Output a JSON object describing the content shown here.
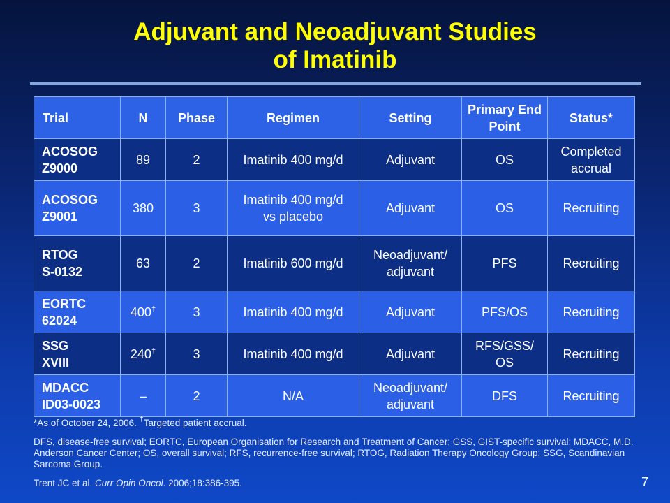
{
  "title": {
    "line1": "Adjuvant and Neoadjuvant Studies",
    "line2": "of Imatinib"
  },
  "table": {
    "headers": [
      "Trial",
      "N",
      "Phase",
      "Regimen",
      "Setting",
      "Primary End Point",
      "Status*"
    ],
    "rows": [
      {
        "trial_line1": "ACOSOG",
        "trial_line2": "Z9000",
        "n": "89",
        "n_mark": "",
        "phase": "2",
        "regimen_line1": "Imatinib 400 mg/d",
        "regimen_line2": "",
        "setting_line1": "Adjuvant",
        "setting_line2": "",
        "endpoint_line1": "OS",
        "endpoint_line2": "",
        "status_line1": "Completed",
        "status_line2": "accrual"
      },
      {
        "trial_line1": "ACOSOG",
        "trial_line2": "Z9001",
        "n": "380",
        "n_mark": "",
        "phase": "3",
        "regimen_line1": "Imatinib 400 mg/d",
        "regimen_line2": "vs placebo",
        "setting_line1": "Adjuvant",
        "setting_line2": "",
        "endpoint_line1": "OS",
        "endpoint_line2": "",
        "status_line1": "Recruiting",
        "status_line2": ""
      },
      {
        "trial_line1": "RTOG",
        "trial_line2": "S-0132",
        "n": "63",
        "n_mark": "",
        "phase": "2",
        "regimen_line1": "Imatinib 600 mg/d",
        "regimen_line2": "",
        "setting_line1": "Neoadjuvant/",
        "setting_line2": "adjuvant",
        "endpoint_line1": "PFS",
        "endpoint_line2": "",
        "status_line1": "Recruiting",
        "status_line2": ""
      },
      {
        "trial_line1": "EORTC",
        "trial_line2": "62024",
        "n": "400",
        "n_mark": "†",
        "phase": "3",
        "regimen_line1": "Imatinib 400 mg/d",
        "regimen_line2": "",
        "setting_line1": "Adjuvant",
        "setting_line2": "",
        "endpoint_line1": "PFS/OS",
        "endpoint_line2": "",
        "status_line1": "Recruiting",
        "status_line2": ""
      },
      {
        "trial_line1": "SSG",
        "trial_line2": "XVIII",
        "n": "240",
        "n_mark": "†",
        "phase": "3",
        "regimen_line1": "Imatinib 400 mg/d",
        "regimen_line2": "",
        "setting_line1": "Adjuvant",
        "setting_line2": "",
        "endpoint_line1": "RFS/GSS/",
        "endpoint_line2": "OS",
        "status_line1": "Recruiting",
        "status_line2": ""
      },
      {
        "trial_line1": "MDACC",
        "trial_line2": "ID03-0023",
        "n": "–",
        "n_mark": "",
        "phase": "2",
        "regimen_line1": "N/A",
        "regimen_line2": "",
        "setting_line1": "Neoadjuvant/",
        "setting_line2": "adjuvant",
        "endpoint_line1": "DFS",
        "endpoint_line2": "",
        "status_line1": "Recruiting",
        "status_line2": ""
      }
    ]
  },
  "footnotes": {
    "status_note_a": "*As of October 24, 2006. ",
    "dagger": "†",
    "status_note_b": "Targeted patient accrual.",
    "abbreviations": "DFS, disease-free survival; EORTC, European Organisation for Research and Treatment of Cancer; GSS, GIST-specific survival; MDACC, M.D. Anderson Cancer Center; OS, overall survival; RFS, recurrence-free survival; RTOG, Radiation Therapy Oncology Group; SSG, Scandinavian Sarcoma Group.",
    "citation_authors": "Trent JC et al. ",
    "citation_journal": "Curr Opin Oncol",
    "citation_rest": ". 2006;18:386-395."
  },
  "page_number": "7"
}
